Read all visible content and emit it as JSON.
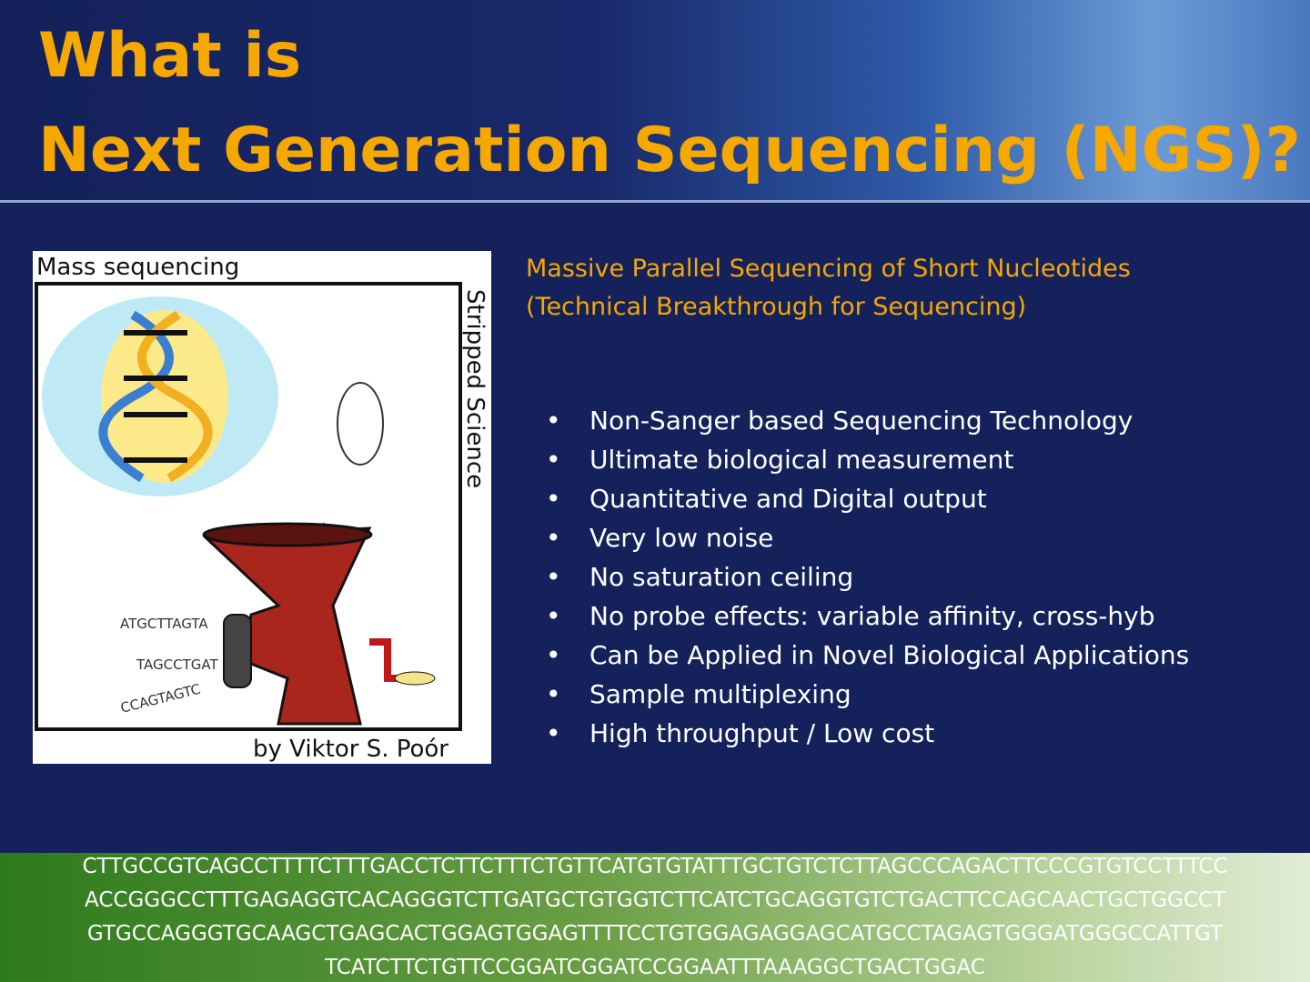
{
  "header": {
    "title_lines": [
      "What is",
      "Next Generation Sequencing (NGS)?"
    ]
  },
  "cartoon": {
    "title": "Mass sequencing",
    "side_text": "Stripped Science",
    "credit": "by Viktor S. Poór",
    "dna_strings": [
      "ATGCTTAGTA",
      "TAGCCTGAT",
      "CCAGTAGTC"
    ]
  },
  "subtitle_lines": [
    "Massive Parallel Sequencing of Short Nucleotides",
    "(Technical Breakthrough for Sequencing)"
  ],
  "bullets": [
    "Non-Sanger based Sequencing Technology",
    "Ultimate biological measurement",
    "Quantitative and Digital output",
    "Very low noise",
    "No saturation ceiling",
    "No probe effects: variable affinity, cross-hyb",
    "Can be Applied in  Novel Biological Applications",
    "Sample multiplexing",
    "High throughput / Low cost"
  ],
  "sequence_lines": [
    "CTTGCCGTCAGCCTTTTCTTTGACCTCTTCTTTCTGTTCATGTGTATTTGCTGTCTCTTAGCCCAGACTTCCCGTGTCCTTTCC",
    "ACCGGGCCTTTGAGAGGTCACAGGGTCTTGATGCTGTGGTCTTCATCTGCAGGTGTCTGACTTCCAGCAACTGCTGGCCT",
    "GTGCCAGGGTGCAAGCTGAGCACTGGAGTGGAGTTTTCCTGTGGAGAGGAGCATGCCTAGAGTGGGATGGGCCATTGT",
    "TCATCTTCTGTTCCGGATCGGATCCGGAATTTAAAGGCTGACTGGAC"
  ]
}
